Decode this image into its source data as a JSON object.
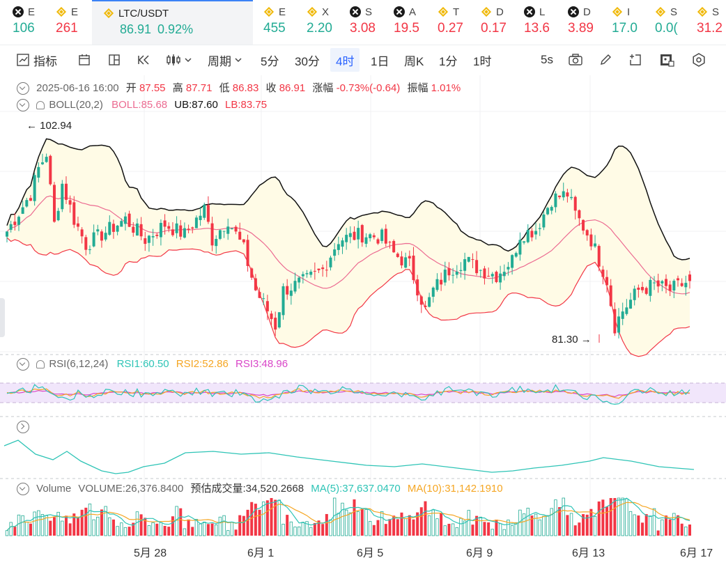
{
  "tickers": [
    {
      "name": "E",
      "value": "106",
      "dir": "up",
      "icon": "x-icon"
    },
    {
      "name": "E",
      "value": "261",
      "dir": "dn",
      "icon": "bnb-icon"
    },
    {
      "name": "LTC/USDT",
      "value": "86.91",
      "change": "0.92%",
      "dir": "up",
      "icon": "bnb-icon",
      "active": true
    },
    {
      "name": "E",
      "value": "455",
      "dir": "up",
      "icon": "bnb-icon"
    },
    {
      "name": "X",
      "value": "2.20",
      "dir": "up",
      "icon": "bnb-icon"
    },
    {
      "name": "S",
      "value": "3.08",
      "dir": "dn",
      "icon": "x-icon"
    },
    {
      "name": "A",
      "value": "19.5",
      "dir": "dn",
      "icon": "x-icon"
    },
    {
      "name": "T",
      "value": "0.27",
      "dir": "dn",
      "icon": "bnb-icon"
    },
    {
      "name": "D",
      "value": "0.17",
      "dir": "dn",
      "icon": "bnb-icon"
    },
    {
      "name": "L",
      "value": "13.6",
      "dir": "dn",
      "icon": "x-icon"
    },
    {
      "name": "D",
      "value": "3.89",
      "dir": "dn",
      "icon": "x-icon"
    },
    {
      "name": "I",
      "value": "17.0",
      "dir": "up",
      "icon": "bnb-icon"
    },
    {
      "name": "S",
      "value": "0.0(",
      "dir": "up",
      "icon": "bnb-icon"
    },
    {
      "name": "S",
      "value": "31.2",
      "dir": "dn",
      "icon": "bnb-icon"
    }
  ],
  "toolbar": {
    "indicator_label": "指标",
    "period_label": "周期",
    "intervals": [
      "5分",
      "30分",
      "4时",
      "1日",
      "周K",
      "1分",
      "1时"
    ],
    "selected_interval": "4时",
    "refresh_label": "5s"
  },
  "info": {
    "datetime": "2025-06-16 16:00",
    "open_label": "开",
    "open": "87.55",
    "high_label": "高",
    "high": "87.71",
    "low_label": "低",
    "low": "86.83",
    "close_label": "收",
    "close": "86.91",
    "change_label": "涨幅",
    "change": "-0.73%(-0.64)",
    "amp_label": "振幅",
    "amp": "1.01%"
  },
  "boll": {
    "title": "BOLL(20,2)",
    "boll": "BOLL:85.68",
    "ub": "UB:87.60",
    "lb": "LB:83.75"
  },
  "rsi": {
    "title": "RSI(6,12,24)",
    "rsi1": "RSI1:60.50",
    "rsi2": "RSI2:52.86",
    "rsi3": "RSI3:48.96"
  },
  "volume": {
    "title": "Volume",
    "vol": "VOLUME:26,376.8400",
    "est": "预估成交量:34,520.2668",
    "ma5": "MA(5):37,637.0470",
    "ma10": "MA(10):31,142.1910"
  },
  "x_labels": [
    "5月 28",
    "6月 1",
    "6月 5",
    "6月 9",
    "6月 13",
    "6月 17"
  ],
  "colors": {
    "up": "#22ab94",
    "down": "#f23645",
    "band_fill": "#fffbe6",
    "ub": "#111111",
    "mid": "#ec6b91",
    "lb": "#f23645",
    "rsi1": "#2ec4b6",
    "rsi2": "#f5a623",
    "rsi3": "#d946c8",
    "ma5": "#2ec4b6",
    "ma10": "#f5a623",
    "accent": "#2962ff"
  },
  "chart_data": {
    "type": "candlestick",
    "interval": "4h",
    "max_label": "102.94",
    "min_label": "81.30",
    "x_ticks": [
      "5月 28",
      "6月 1",
      "6月 5",
      "6月 9",
      "6月 13",
      "6月 17"
    ],
    "close_path": [
      [
        0,
        91.8
      ],
      [
        6,
        95.5
      ],
      [
        8,
        98
      ],
      [
        10,
        99.5
      ],
      [
        12,
        92.5
      ],
      [
        14,
        96.5
      ],
      [
        17,
        93
      ],
      [
        20,
        90.5
      ],
      [
        26,
        92
      ],
      [
        30,
        93
      ],
      [
        35,
        91
      ],
      [
        40,
        92.5
      ],
      [
        45,
        91.5
      ],
      [
        50,
        94
      ],
      [
        52,
        91
      ],
      [
        56,
        93
      ],
      [
        60,
        90
      ],
      [
        63,
        86
      ],
      [
        66,
        84
      ],
      [
        68,
        82.5
      ],
      [
        70,
        86
      ],
      [
        76,
        87
      ],
      [
        80,
        88
      ],
      [
        84,
        91
      ],
      [
        90,
        91.5
      ],
      [
        95,
        91.2
      ],
      [
        98,
        89.6
      ],
      [
        102,
        88.5
      ],
      [
        106,
        84
      ],
      [
        108,
        86
      ],
      [
        112,
        88
      ],
      [
        116,
        89
      ],
      [
        120,
        88
      ],
      [
        124,
        87.5
      ],
      [
        128,
        89
      ],
      [
        130,
        91.5
      ],
      [
        134,
        92
      ],
      [
        138,
        95
      ],
      [
        142,
        95.5
      ],
      [
        144,
        93.5
      ],
      [
        148,
        91
      ],
      [
        152,
        87
      ],
      [
        154,
        82.5
      ],
      [
        156,
        84
      ],
      [
        160,
        86
      ],
      [
        164,
        86.5
      ],
      [
        168,
        86
      ],
      [
        173,
        86.91
      ]
    ],
    "volume_scale": "relative"
  },
  "rsi_data": {
    "band_top": 70,
    "band_bottom": 30
  },
  "indicator_curve": "relative"
}
